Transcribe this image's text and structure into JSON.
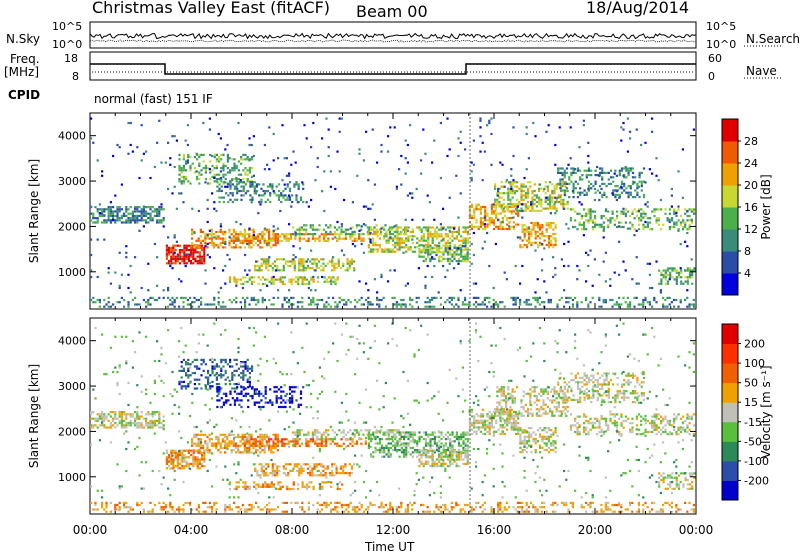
{
  "header": {
    "title": "Christmas Valley East (fitACF)",
    "beam": "Beam 00",
    "date": "18/Aug/2014"
  },
  "top_panels": {
    "nsky_label": "N.Sky",
    "nsearch_label": "N.Search",
    "nsky_ticks": [
      "10^5",
      "10^0"
    ],
    "nsearch_ticks": [
      "10^5",
      "10^0"
    ],
    "freq_label": "Freq.",
    "freq_unit": "[MHz]",
    "freq_ticks": [
      "18",
      "8"
    ],
    "nave_label": "Nave",
    "nave_ticks": [
      "60",
      "0"
    ],
    "cpid_label": "CPID",
    "cpid_value": "normal (fast) 151 IF"
  },
  "chart_data": [
    {
      "type": "heatmap",
      "name": "power-panel",
      "ylabel": "Slant Range [km]",
      "ylim": [
        180,
        4500
      ],
      "yticks": [
        1000,
        2000,
        3000,
        4000
      ],
      "xlim": [
        0,
        24
      ],
      "colorbar": {
        "label": "Power [dB]",
        "ticks": [
          "4",
          "8",
          "12",
          "16",
          "20",
          "24",
          "28"
        ],
        "colors": [
          "#0000dd",
          "#2a4ea8",
          "#3a8c7a",
          "#4bb04b",
          "#c8d832",
          "#f0a000",
          "#f05a00",
          "#e00000"
        ]
      }
    },
    {
      "type": "heatmap",
      "name": "velocity-panel",
      "ylabel": "Slant Range [km]",
      "ylim": [
        180,
        4500
      ],
      "yticks": [
        1000,
        2000,
        3000,
        4000
      ],
      "xlim": [
        0,
        24
      ],
      "xticks": [
        "00:00",
        "04:00",
        "08:00",
        "12:00",
        "16:00",
        "20:00",
        "00:00"
      ],
      "xlabel": "Time UT",
      "colorbar": {
        "label": "Velocity [m s⁻¹]",
        "ticks": [
          "200",
          "100",
          "50",
          "15",
          "-15",
          "-50",
          "-100",
          "-200"
        ],
        "colors": [
          "#0000cc",
          "#2b4eaa",
          "#2c8a5a",
          "#5ac03c",
          "#c0c0b8",
          "#f0a000",
          "#f06000",
          "#ff3000",
          "#e00000"
        ]
      }
    }
  ]
}
